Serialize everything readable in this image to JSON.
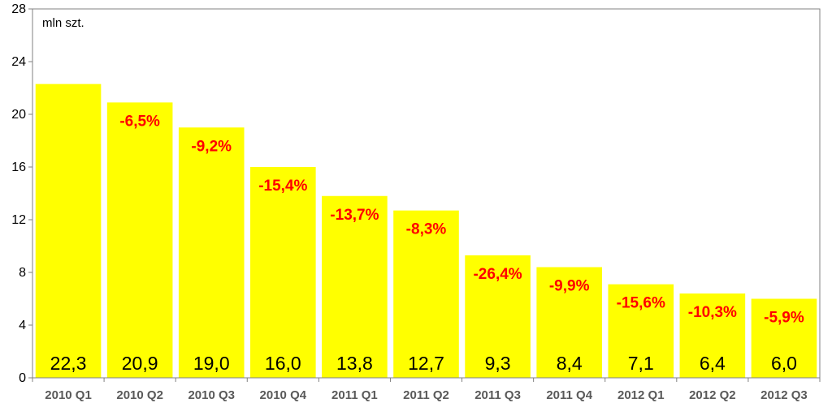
{
  "chart_data": {
    "type": "bar",
    "unit_label": "mln szt.",
    "categories": [
      "2010 Q1",
      "2010 Q2",
      "2010 Q3",
      "2010 Q4",
      "2011 Q1",
      "2011 Q2",
      "2011 Q3",
      "2011 Q4",
      "2012 Q1",
      "2012 Q2",
      "2012 Q3"
    ],
    "values": [
      22.3,
      20.9,
      19.0,
      16.0,
      13.8,
      12.7,
      9.3,
      8.4,
      7.1,
      6.4,
      6.0
    ],
    "value_labels": [
      "22,3",
      "20,9",
      "19,0",
      "16,0",
      "13,8",
      "12,7",
      "9,3",
      "8,4",
      "7,1",
      "6,4",
      "6,0"
    ],
    "change_labels": [
      "",
      "-6,5%",
      "-9,2%",
      "-15,4%",
      "-13,7%",
      "-8,3%",
      "-26,4%",
      "-9,9%",
      "-15,6%",
      "-10,3%",
      "-5,9%"
    ],
    "yticks": [
      0,
      4,
      8,
      12,
      16,
      20,
      24,
      28
    ],
    "ylim": [
      0,
      28
    ],
    "grid": false,
    "legend": "none",
    "colors": {
      "bar": "#ffff00",
      "change_label": "#ff0000",
      "category_label": "#595959",
      "axis": "#808080",
      "plot_border": "#808080"
    }
  }
}
